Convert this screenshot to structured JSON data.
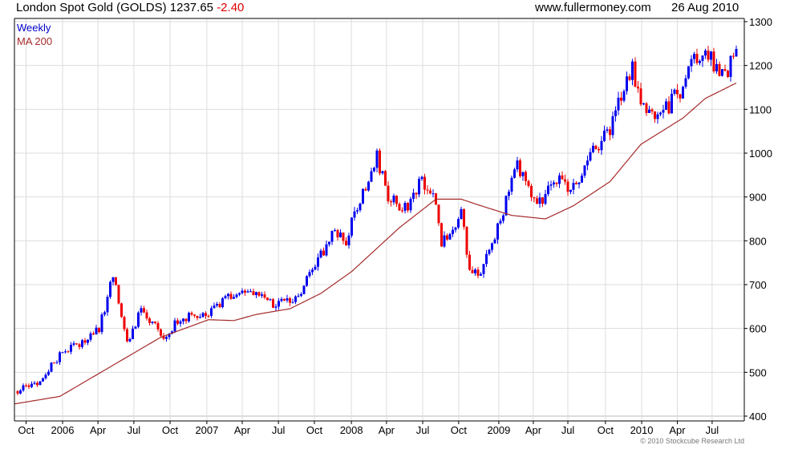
{
  "header": {
    "title": "London Spot Gold (GOLDS)",
    "last": "1237.65",
    "change": "-2.40",
    "site": "www.fullermoney.com",
    "date": "26 Aug 2010"
  },
  "copyright": "© 2010 Stockcube Research Ltd",
  "colors": {
    "up": "#0000ee",
    "down": "#ee0000",
    "ma": "#a52a2a",
    "grid": "#dddddd"
  },
  "chart_data": {
    "type": "candlestick",
    "title": "London Spot Gold (GOLDS) 1237.65 -2.40",
    "legend": [
      {
        "label": "Weekly",
        "color": "#0000cc"
      },
      {
        "label": "MA 200",
        "color": "#a52a2a"
      }
    ],
    "legend_position": "top-left",
    "ylim": [
      400,
      1300
    ],
    "yticks": [
      400,
      500,
      600,
      700,
      800,
      900,
      1000,
      1100,
      1200,
      1300
    ],
    "xlim_weeks": [
      -1,
      260
    ],
    "xticks": [
      {
        "w": 3,
        "label": "Oct"
      },
      {
        "w": 16,
        "label": "2006"
      },
      {
        "w": 28.6,
        "label": "Apr"
      },
      {
        "w": 41.4,
        "label": "Jul"
      },
      {
        "w": 54.3,
        "label": "Oct"
      },
      {
        "w": 67.4,
        "label": "2007"
      },
      {
        "w": 80,
        "label": "Apr"
      },
      {
        "w": 92.9,
        "label": "Jul"
      },
      {
        "w": 105.7,
        "label": "Oct"
      },
      {
        "w": 118.9,
        "label": "2008"
      },
      {
        "w": 131.4,
        "label": "Apr"
      },
      {
        "w": 144.3,
        "label": "Jul"
      },
      {
        "w": 157.1,
        "label": "Oct"
      },
      {
        "w": 171.4,
        "label": "2009"
      },
      {
        "w": 183.7,
        "label": "Apr"
      },
      {
        "w": 196,
        "label": "Jul"
      },
      {
        "w": 209.4,
        "label": "Oct"
      },
      {
        "w": 222.3,
        "label": "2010"
      },
      {
        "w": 235,
        "label": "Apr"
      },
      {
        "w": 247.4,
        "label": "Jul"
      }
    ],
    "weekly_close_points": [
      [
        0,
        457
      ],
      [
        8,
        478
      ],
      [
        16,
        550
      ],
      [
        22,
        560
      ],
      [
        29,
        600
      ],
      [
        34,
        718
      ],
      [
        39,
        570
      ],
      [
        44,
        640
      ],
      [
        48,
        610
      ],
      [
        52,
        585
      ],
      [
        59,
        625
      ],
      [
        67,
        625
      ],
      [
        74,
        665
      ],
      [
        79,
        680
      ],
      [
        84,
        685
      ],
      [
        89,
        655
      ],
      [
        93,
        660
      ],
      [
        99,
        665
      ],
      [
        106,
        740
      ],
      [
        112,
        820
      ],
      [
        117,
        800
      ],
      [
        121,
        880
      ],
      [
        128,
        990
      ],
      [
        132,
        900
      ],
      [
        137,
        870
      ],
      [
        141,
        900
      ],
      [
        144,
        940
      ],
      [
        148,
        910
      ],
      [
        151,
        800
      ],
      [
        155,
        820
      ],
      [
        158,
        860
      ],
      [
        161,
        740
      ],
      [
        165,
        730
      ],
      [
        168,
        780
      ],
      [
        171,
        830
      ],
      [
        178,
        970
      ],
      [
        182,
        920
      ],
      [
        187,
        880
      ],
      [
        191,
        940
      ],
      [
        195,
        930
      ],
      [
        198,
        920
      ],
      [
        205,
        1000
      ],
      [
        211,
        1050
      ],
      [
        216,
        1150
      ],
      [
        219,
        1200
      ],
      [
        221,
        1130
      ],
      [
        224,
        1100
      ],
      [
        228,
        1090
      ],
      [
        232,
        1110
      ],
      [
        237,
        1150
      ],
      [
        241,
        1220
      ],
      [
        245,
        1240
      ],
      [
        248,
        1200
      ],
      [
        252,
        1180
      ],
      [
        256,
        1237.65
      ]
    ],
    "ma200_points": [
      [
        -1,
        428
      ],
      [
        15,
        445
      ],
      [
        31,
        505
      ],
      [
        51,
        580
      ],
      [
        68,
        620
      ],
      [
        77,
        618
      ],
      [
        85,
        632
      ],
      [
        97,
        645
      ],
      [
        108,
        680
      ],
      [
        119,
        730
      ],
      [
        136,
        830
      ],
      [
        149,
        895
      ],
      [
        158,
        895
      ],
      [
        165,
        880
      ],
      [
        176,
        858
      ],
      [
        188,
        850
      ],
      [
        198,
        880
      ],
      [
        211,
        935
      ],
      [
        222,
        1020
      ],
      [
        237,
        1080
      ],
      [
        245,
        1125
      ],
      [
        256,
        1160
      ]
    ]
  }
}
